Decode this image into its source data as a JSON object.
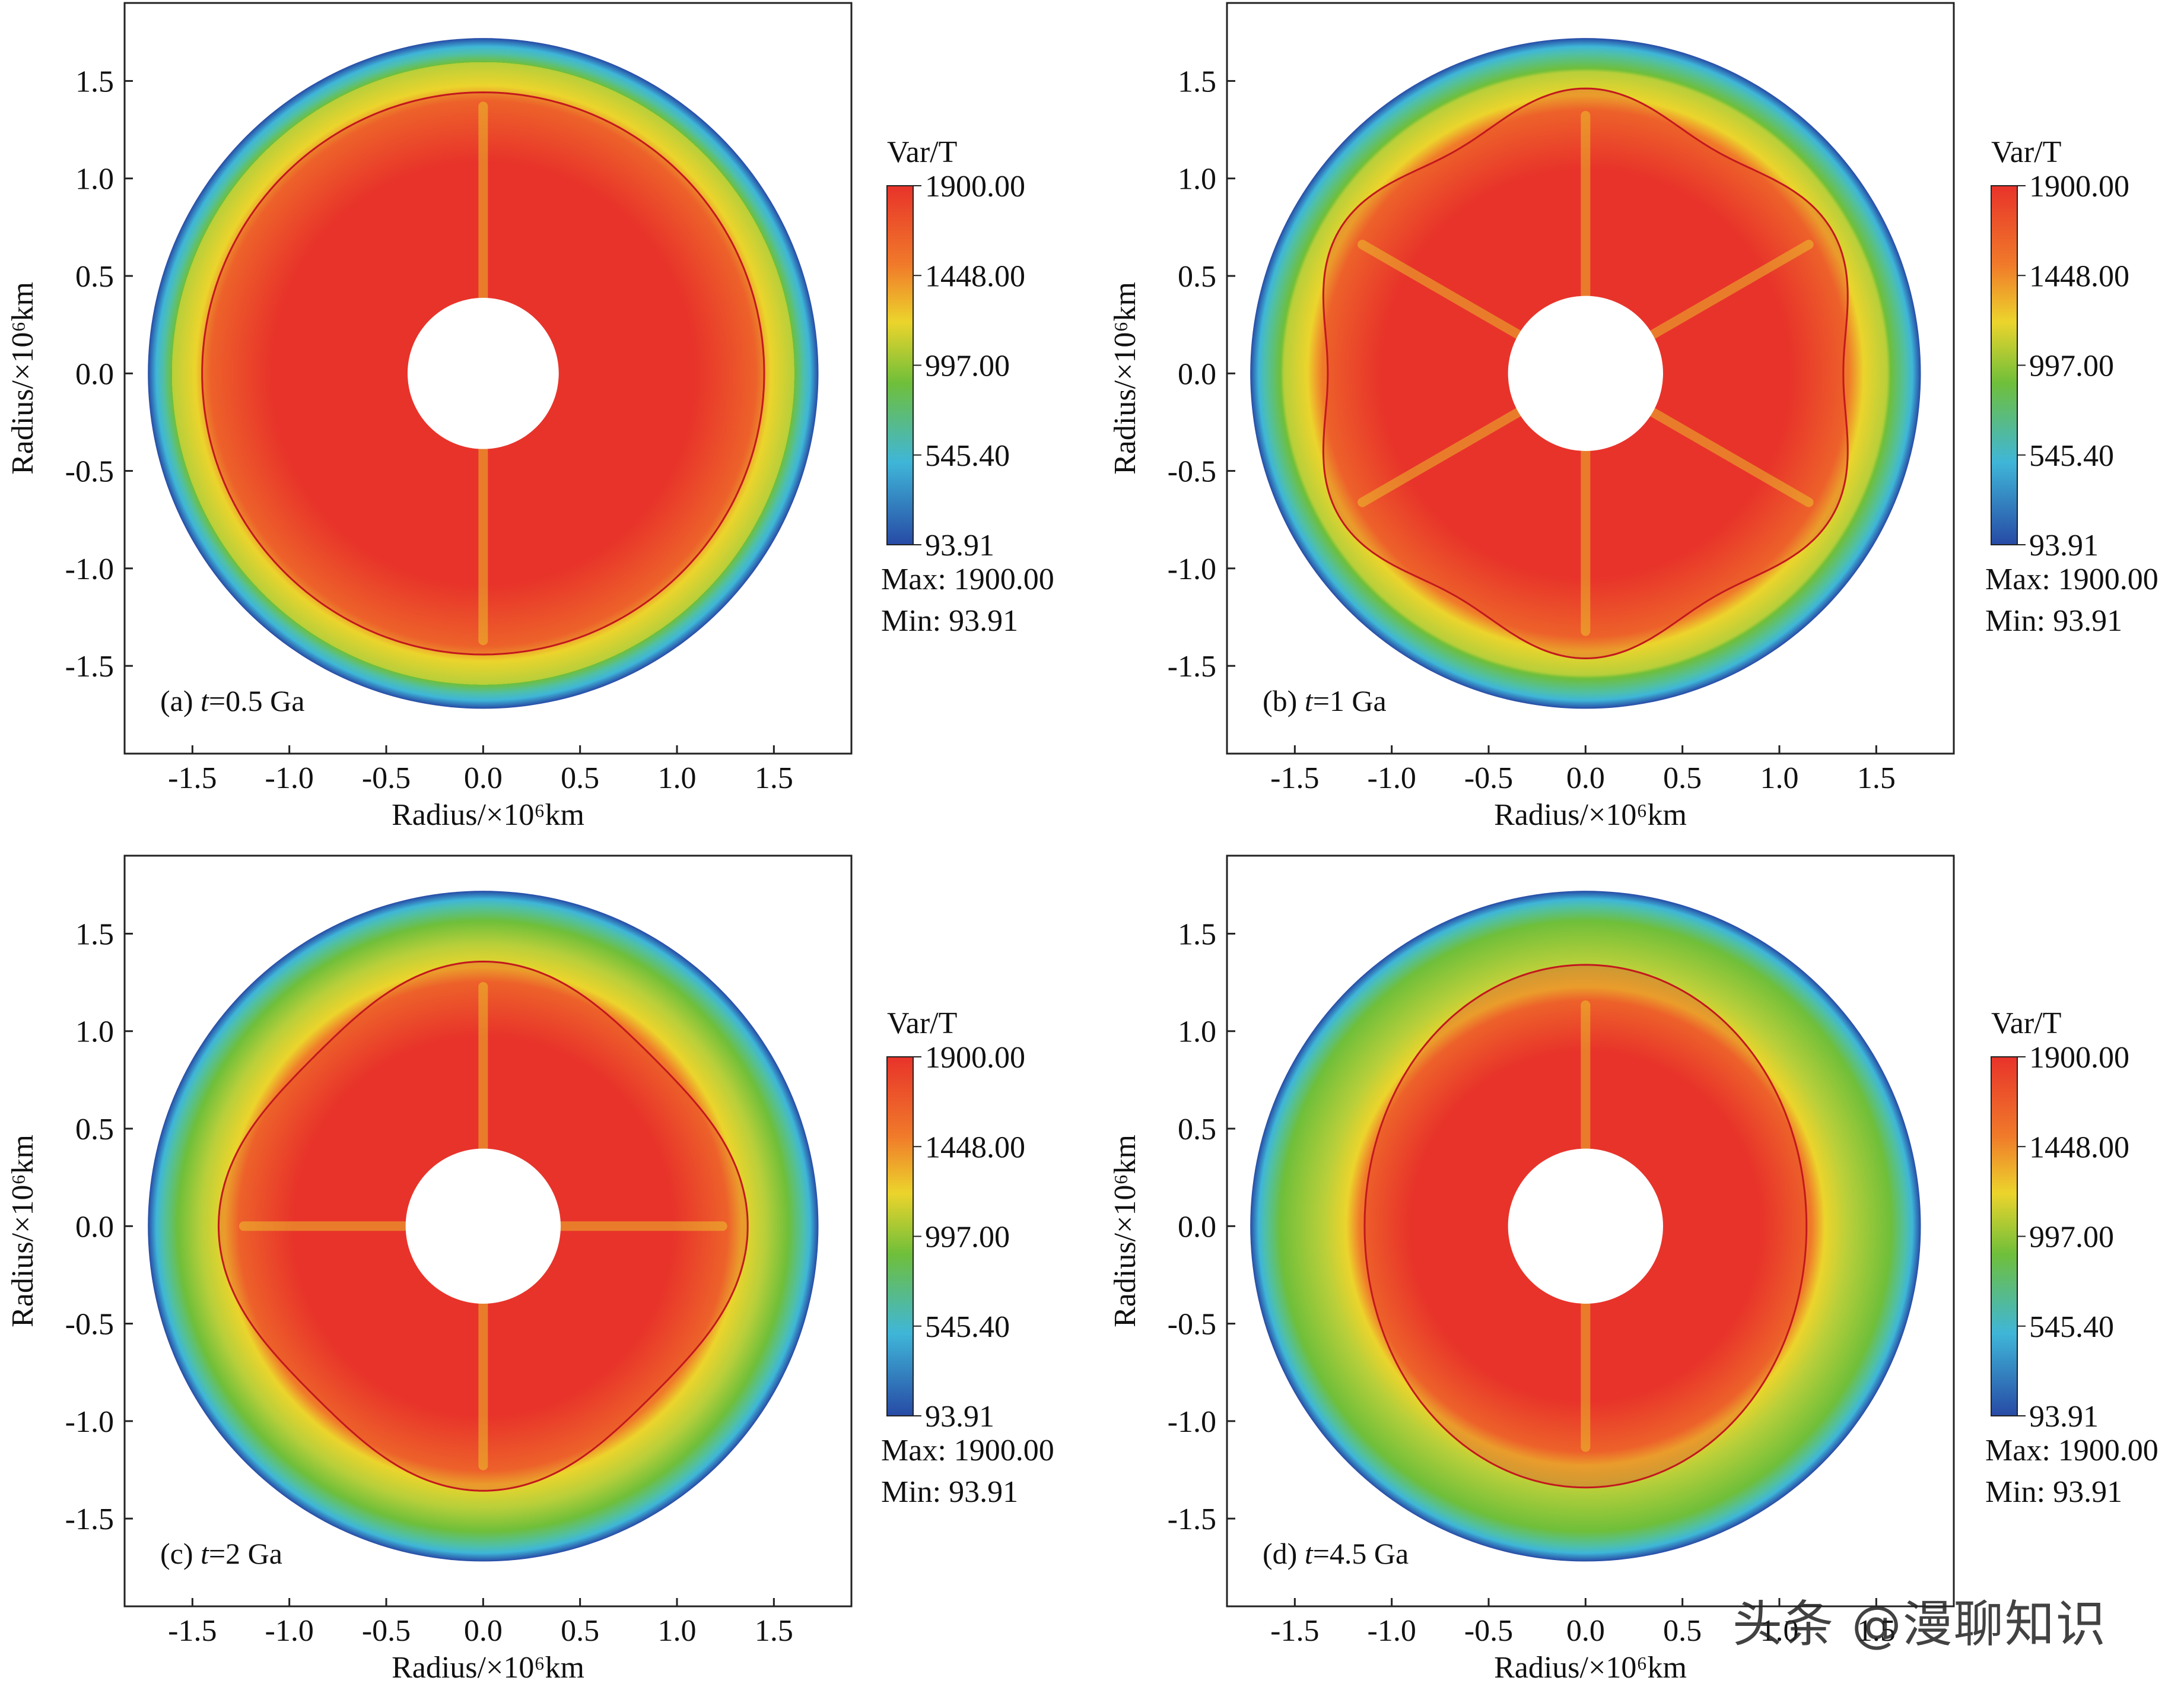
{
  "chart_data": [
    {
      "type": "heatmap",
      "panel": "a",
      "label": "(a)",
      "time_var": "t",
      "time_rest": "=0.5 Ga",
      "title": "(a) t=0.5 Ga",
      "xlabel": "Radius/×10⁶km",
      "ylabel": "Radius/×10⁶km",
      "xlim": [
        -1.85,
        1.9
      ],
      "ylim": [
        -1.95,
        1.9
      ],
      "xticks": [
        "-1.5",
        "-1.0",
        "-0.5",
        "0.0",
        "0.5",
        "1.0",
        "1.5"
      ],
      "yticks": [
        "1.5",
        "1.0",
        "0.5",
        "0.0",
        "-0.5",
        "-1.0",
        "-1.5"
      ],
      "colorbar": {
        "title": "Var/T",
        "ticks": [
          "1900.00",
          "1448.00",
          "997.00",
          "545.40",
          "93.91"
        ],
        "max_label": "Max: 1900.00",
        "min_label": "Min: 93.91"
      },
      "outer_radius": 1.73,
      "inner_radius": 0.39,
      "hot_region_radius": 1.45,
      "lobes": 1
    },
    {
      "type": "heatmap",
      "panel": "b",
      "label": "(b)",
      "time_var": "t",
      "time_rest": "=1 Ga",
      "title": "(b) t=1 Ga",
      "xlabel": "Radius/×10⁶km",
      "ylabel": "Radius/×10⁶km",
      "xlim": [
        -1.85,
        1.9
      ],
      "ylim": [
        -1.95,
        1.9
      ],
      "xticks": [
        "-1.5",
        "-1.0",
        "-0.5",
        "0.0",
        "0.5",
        "1.0",
        "1.5"
      ],
      "yticks": [
        "1.5",
        "1.0",
        "0.5",
        "0.0",
        "-0.5",
        "-1.0",
        "-1.5"
      ],
      "colorbar": {
        "title": "Var/T",
        "ticks": [
          "1900.00",
          "1448.00",
          "997.00",
          "545.40",
          "93.91"
        ],
        "max_label": "Max: 1900.00",
        "min_label": "Min: 93.91"
      },
      "outer_radius": 1.73,
      "inner_radius": 0.4,
      "hot_region_radius": 1.4,
      "lobes": 6
    },
    {
      "type": "heatmap",
      "panel": "c",
      "label": "(c)",
      "time_var": "t",
      "time_rest": "=2 Ga",
      "title": "(c) t=2 Ga",
      "xlabel": "Radius/×10⁶km",
      "ylabel": "Radius/×10⁶km",
      "xlim": [
        -1.85,
        1.9
      ],
      "ylim": [
        -1.95,
        1.9
      ],
      "xticks": [
        "-1.5",
        "-1.0",
        "-0.5",
        "0.0",
        "0.5",
        "1.0",
        "1.5"
      ],
      "yticks": [
        "1.5",
        "1.0",
        "0.5",
        "0.0",
        "-0.5",
        "-1.0",
        "-1.5"
      ],
      "colorbar": {
        "title": "Var/T",
        "ticks": [
          "1900.00",
          "1448.00",
          "997.00",
          "545.40",
          "93.91"
        ],
        "max_label": "Max: 1900.00",
        "min_label": "Min: 93.91"
      },
      "outer_radius": 1.73,
      "inner_radius": 0.4,
      "hot_region_radius": 1.3,
      "lobes": 4
    },
    {
      "type": "heatmap",
      "panel": "d",
      "label": "(d)",
      "time_var": "t",
      "time_rest": "=4.5 Ga",
      "title": "(d) t=4.5 Ga",
      "xlabel": "Radius/×10⁶km",
      "ylabel": "Radius/×10⁶km",
      "xlim": [
        -1.85,
        1.9
      ],
      "ylim": [
        -1.95,
        1.9
      ],
      "xticks": [
        "-1.5",
        "-1.0",
        "-0.5",
        "0.0",
        "0.5",
        "1.0",
        "1.5"
      ],
      "yticks": [
        "1.5",
        "1.0",
        "0.5",
        "0.0",
        "-0.5",
        "-1.0",
        "-1.5"
      ],
      "colorbar": {
        "title": "Var/T",
        "ticks": [
          "1900.00",
          "1448.00",
          "997.00",
          "545.40",
          "93.91"
        ],
        "max_label": "Max: 1900.00",
        "min_label": "Min: 93.91"
      },
      "outer_radius": 1.73,
      "inner_radius": 0.4,
      "hot_region_radius": 1.2,
      "lobes": 2
    }
  ],
  "colors": {
    "hot": "#e8332a",
    "warm": "#f07a2a",
    "yellow": "#ecd42c",
    "green": "#6fbf3a",
    "cyan": "#3fb6d8",
    "blue": "#274aa5",
    "contour": "#c2181e",
    "axis": "#222222"
  },
  "watermark": "头条 @漫聊知识"
}
